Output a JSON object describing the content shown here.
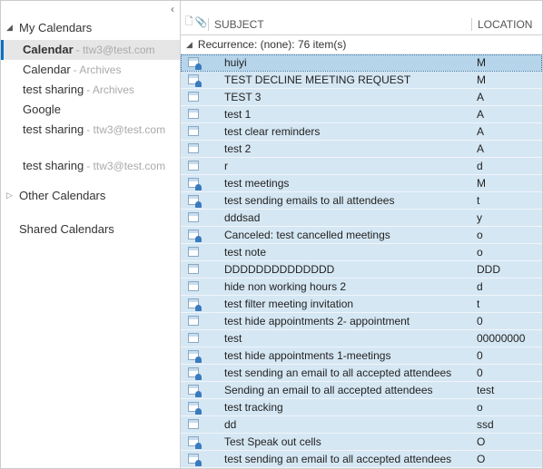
{
  "sidebar": {
    "groups": [
      {
        "title": "My Calendars",
        "expanded": true,
        "items": [
          {
            "label": "Calendar",
            "suffix": "- ttw3@test.com",
            "selected": true
          },
          {
            "label": "Calendar",
            "suffix": "- Archives"
          },
          {
            "label": "test sharing",
            "suffix": "- Archives"
          },
          {
            "label": "Google",
            "suffix": ""
          },
          {
            "label": "test sharing",
            "suffix": "- ttw3@test.com"
          },
          {
            "label": "test sharing",
            "suffix": "- ttw3@test.com",
            "gap": true
          }
        ]
      },
      {
        "title": "Other Calendars",
        "expanded": false,
        "items": []
      },
      {
        "title": "Shared Calendars",
        "expanded": null,
        "items": []
      }
    ]
  },
  "list": {
    "columns": {
      "subject": "SUBJECT",
      "location": "LOCATION"
    },
    "group_label": "Recurrence: (none): 76 item(s)",
    "rows": [
      {
        "subject": "huiyi",
        "location": "M",
        "meeting": true,
        "selected": true
      },
      {
        "subject": "TEST DECLINE MEETING REQUEST",
        "location": "M",
        "meeting": true
      },
      {
        "subject": "TEST 3",
        "location": "A",
        "meeting": false
      },
      {
        "subject": "test 1",
        "location": "A",
        "meeting": false
      },
      {
        "subject": "test clear reminders",
        "location": "A",
        "meeting": false
      },
      {
        "subject": "test 2",
        "location": "A",
        "meeting": false
      },
      {
        "subject": "r",
        "location": "d",
        "meeting": false
      },
      {
        "subject": "test meetings",
        "location": "M",
        "meeting": true
      },
      {
        "subject": "test sending emails to all attendees",
        "location": "t",
        "meeting": true
      },
      {
        "subject": "dddsad",
        "location": "y",
        "meeting": false
      },
      {
        "subject": "Canceled: test cancelled meetings",
        "location": "o",
        "meeting": true
      },
      {
        "subject": "test note",
        "location": "o",
        "meeting": false
      },
      {
        "subject": "DDDDDDDDDDDDDD",
        "location": "DDD",
        "meeting": false
      },
      {
        "subject": "hide non working hours 2",
        "location": "d",
        "meeting": false
      },
      {
        "subject": "test filter meeting invitation",
        "location": "t",
        "meeting": true
      },
      {
        "subject": "test hide appointments 2- appointment",
        "location": "0",
        "meeting": false
      },
      {
        "subject": "test",
        "location": "00000000",
        "meeting": false
      },
      {
        "subject": "test hide appointments 1-meetings",
        "location": "0",
        "meeting": true
      },
      {
        "subject": "test sending an email to all accepted attendees",
        "location": "0",
        "meeting": true
      },
      {
        "subject": "Sending an email to all accepted attendees",
        "location": "test",
        "meeting": true
      },
      {
        "subject": "test tracking",
        "location": "o",
        "meeting": true
      },
      {
        "subject": "dd",
        "location": "ssd",
        "meeting": false
      },
      {
        "subject": "Test Speak out cells",
        "location": "O",
        "meeting": true
      },
      {
        "subject": "test sending an email to all accepted attendees",
        "location": "O",
        "meeting": true
      }
    ]
  },
  "colors": {
    "row_bg": "#d5e7f3",
    "row_selected_bg": "#b6d5ea",
    "accent": "#0072c6"
  }
}
